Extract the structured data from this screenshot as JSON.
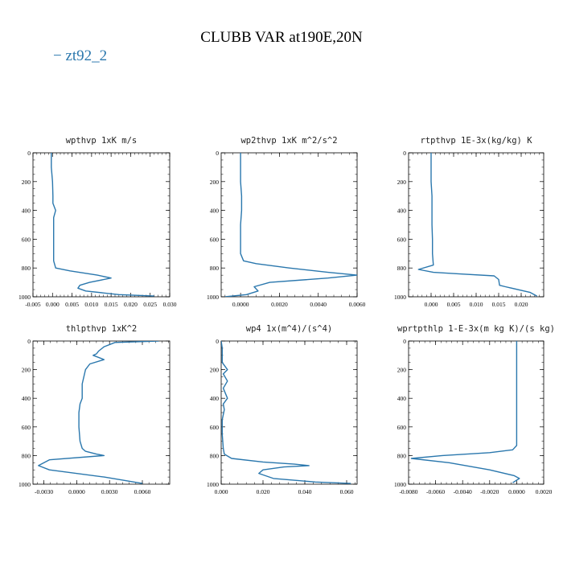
{
  "page": {
    "title": "CLUBB VAR at190E,20N",
    "legend_label": "− zt92_2",
    "series_color": "#2a77ad"
  },
  "chart_data": [
    {
      "type": "line",
      "title": "wpthvp  1xK m/s",
      "xlim": [
        -0.005,
        0.03
      ],
      "ylim": [
        0,
        1000
      ],
      "y_inverted": true,
      "xticks": [
        -0.005,
        0.0,
        0.005,
        0.01,
        0.015,
        0.02,
        0.025,
        0.03
      ],
      "xtick_labels": [
        "-0.005",
        "0.000",
        "0.005",
        "0.010",
        "0.015",
        "0.020",
        "0.025",
        "0.030"
      ],
      "yticks": [
        0,
        200,
        400,
        600,
        800,
        1000
      ],
      "ytick_labels": [
        "0",
        "200",
        "400",
        "600",
        "800",
        "1000"
      ],
      "series": [
        {
          "x": [
            -0.0003,
            -0.0003,
            0.0,
            0.0001,
            0.0001,
            0.0008,
            0.0003,
            0.0003,
            0.0003,
            0.0003,
            0.0008,
            0.0045,
            0.0115,
            0.015,
            0.0095,
            0.007,
            0.0065,
            0.0085,
            0.017,
            0.026
          ],
          "y": [
            0,
            100,
            200,
            300,
            350,
            400,
            450,
            550,
            650,
            750,
            800,
            820,
            850,
            870,
            900,
            920,
            940,
            960,
            985,
            995
          ]
        }
      ]
    },
    {
      "type": "line",
      "title": "wp2thvp  1xK m^2/s^2",
      "xlim": [
        -0.001,
        0.006
      ],
      "ylim": [
        0,
        1000
      ],
      "y_inverted": true,
      "xticks": [
        0.0,
        0.002,
        0.004,
        0.006
      ],
      "xtick_labels": [
        "0.0000",
        "0.0020",
        "0.0040",
        "0.0060"
      ],
      "yticks": [
        0,
        200,
        400,
        600,
        800,
        1000
      ],
      "ytick_labels": [
        "0",
        "200",
        "400",
        "600",
        "800",
        "1000"
      ],
      "series": [
        {
          "x": [
            0.0,
            0.0,
            0.0,
            5e-05,
            5e-05,
            0.0,
            0.0,
            0.0,
            0.00015,
            0.0008,
            0.0025,
            0.0045,
            0.006,
            0.0045,
            0.0015,
            0.0007,
            0.0009,
            0.0003,
            -0.0008
          ],
          "y": [
            0,
            100,
            200,
            300,
            400,
            500,
            600,
            700,
            750,
            770,
            800,
            830,
            850,
            870,
            900,
            930,
            960,
            985,
            1000
          ]
        }
      ]
    },
    {
      "type": "line",
      "title": "rtpthvp  1E-3x(kg/kg) K",
      "xlim": [
        -0.005,
        0.025
      ],
      "ylim": [
        0,
        1000
      ],
      "y_inverted": true,
      "xticks": [
        0.0,
        0.005,
        0.01,
        0.015,
        0.02
      ],
      "xtick_labels": [
        "0.000",
        "0.005",
        "0.010",
        "0.015",
        "0.020"
      ],
      "yticks": [
        0,
        200,
        400,
        600,
        800,
        1000
      ],
      "ytick_labels": [
        "0",
        "200",
        "400",
        "600",
        "800",
        "1000"
      ],
      "series": [
        {
          "x": [
            0.0,
            0.0,
            0.0,
            0.0002,
            0.0002,
            0.0002,
            0.0003,
            0.0003,
            0.0005,
            -0.0028,
            0.0005,
            0.006,
            0.014,
            0.015,
            0.0152,
            0.0165,
            0.022,
            0.0235
          ],
          "y": [
            0,
            100,
            200,
            300,
            400,
            500,
            600,
            700,
            780,
            810,
            830,
            840,
            855,
            880,
            920,
            930,
            970,
            995
          ]
        }
      ]
    },
    {
      "type": "line",
      "title": "thlpthvp  1xK^2",
      "xlim": [
        -0.004,
        0.0085
      ],
      "ylim": [
        0,
        1000
      ],
      "y_inverted": true,
      "xticks": [
        -0.003,
        0.0,
        0.003,
        0.006
      ],
      "xtick_labels": [
        "-0.0030",
        "0.0000",
        "0.0030",
        "0.0060"
      ],
      "yticks": [
        0,
        200,
        400,
        600,
        800,
        1000
      ],
      "ytick_labels": [
        "0",
        "200",
        "400",
        "600",
        "800",
        "1000"
      ],
      "series": [
        {
          "x": [
            0.0075,
            0.0035,
            0.0025,
            0.002,
            0.0018,
            0.0015,
            0.0025,
            0.0012,
            0.0008,
            0.0005,
            0.0005,
            0.0003,
            0.0002,
            0.0002,
            0.0003,
            0.0005,
            0.0008,
            0.0018,
            0.0025,
            -0.0025,
            -0.0035,
            -0.0025,
            0.0025,
            0.006
          ],
          "y": [
            0,
            10,
            40,
            70,
            90,
            100,
            130,
            160,
            200,
            300,
            400,
            440,
            500,
            600,
            700,
            750,
            770,
            790,
            800,
            830,
            870,
            900,
            950,
            995
          ]
        }
      ]
    },
    {
      "type": "line",
      "title": "wp4  1x(m^4)/(s^4)",
      "xlim": [
        0.0,
        0.065
      ],
      "ylim": [
        0,
        1000
      ],
      "y_inverted": true,
      "xticks": [
        0.0,
        0.02,
        0.04,
        0.06
      ],
      "xtick_labels": [
        "0.000",
        "0.020",
        "0.040",
        "0.060"
      ],
      "yticks": [
        0,
        200,
        400,
        600,
        800,
        1000
      ],
      "ytick_labels": [
        "0",
        "200",
        "400",
        "600",
        "800",
        "1000"
      ],
      "series": [
        {
          "x": [
            0.0,
            0.0005,
            0.0005,
            0.003,
            0.001,
            0.003,
            0.001,
            0.003,
            0.001,
            0.0015,
            0.0005,
            0.0005,
            0.001,
            0.0015,
            0.005,
            0.02,
            0.035,
            0.042,
            0.03,
            0.02,
            0.018,
            0.025,
            0.045,
            0.062
          ],
          "y": [
            0,
            50,
            150,
            200,
            230,
            280,
            330,
            400,
            440,
            480,
            550,
            650,
            750,
            790,
            820,
            845,
            860,
            870,
            880,
            900,
            925,
            960,
            985,
            995
          ]
        }
      ]
    },
    {
      "type": "line",
      "title": "wprtpthlp  1-E-3x(m kg K)/(s kg)",
      "xlim": [
        -0.008,
        0.002
      ],
      "ylim": [
        0,
        1000
      ],
      "y_inverted": true,
      "xticks": [
        -0.008,
        -0.006,
        -0.004,
        -0.002,
        0.0,
        0.002
      ],
      "xtick_labels": [
        "-0.0080",
        "-0.0060",
        "-0.0040",
        "-0.0020",
        "0.0000",
        "0.0020"
      ],
      "yticks": [
        0,
        200,
        400,
        600,
        800,
        1000
      ],
      "ytick_labels": [
        "0",
        "200",
        "400",
        "600",
        "800",
        "1000"
      ],
      "series": [
        {
          "x": [
            0.0,
            0.0,
            0.0,
            0.0,
            0.0,
            -0.0003,
            -0.002,
            -0.0055,
            -0.0078,
            -0.005,
            -0.002,
            -0.0002,
            0.0002,
            -0.0003
          ],
          "y": [
            0,
            200,
            400,
            600,
            730,
            760,
            780,
            800,
            820,
            850,
            900,
            940,
            960,
            990
          ]
        }
      ]
    }
  ]
}
